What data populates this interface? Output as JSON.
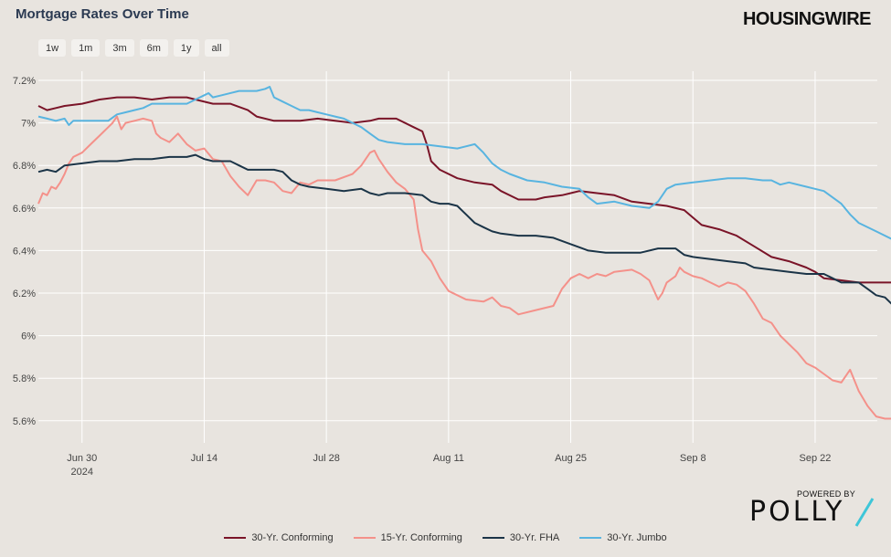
{
  "header": {
    "title": "Mortgage Rates Over Time",
    "brand": "HOUSINGWIRE"
  },
  "ranges": [
    "1w",
    "1m",
    "3m",
    "6m",
    "1y",
    "all"
  ],
  "footer": {
    "powered_by": "POWERED BY",
    "polly": "POLLY"
  },
  "chart_data": {
    "type": "line",
    "title": "Mortgage Rates Over Time",
    "x_ticks": [
      {
        "day": 5,
        "label": "Jun 30",
        "sub": "2024"
      },
      {
        "day": 19,
        "label": "Jul 14"
      },
      {
        "day": 33,
        "label": "Jul 28"
      },
      {
        "day": 47,
        "label": "Aug 11"
      },
      {
        "day": 61,
        "label": "Aug 25"
      },
      {
        "day": 75,
        "label": "Sep 8"
      },
      {
        "day": 89,
        "label": "Sep 22"
      }
    ],
    "x_range_days": [
      0,
      102
    ],
    "ylim": [
      5.5,
      7.25
    ],
    "y_ticks": [
      5.6,
      5.8,
      6,
      6.2,
      6.4,
      6.6,
      6.8,
      7,
      7.2
    ],
    "y_tick_labels": [
      "5.6%",
      "5.8%",
      "6%",
      "6.2%",
      "6.4%",
      "6.6%",
      "6.8%",
      "7%",
      "7.2%"
    ],
    "grid": true,
    "legend_position": "bottom",
    "series": [
      {
        "name": "30-Yr. Conforming",
        "color": "#7a1428",
        "points": [
          [
            0,
            7.08
          ],
          [
            1,
            7.06
          ],
          [
            2,
            7.07
          ],
          [
            3,
            7.08
          ],
          [
            5,
            7.09
          ],
          [
            7,
            7.11
          ],
          [
            9,
            7.12
          ],
          [
            11,
            7.12
          ],
          [
            13,
            7.11
          ],
          [
            15,
            7.12
          ],
          [
            17,
            7.12
          ],
          [
            18,
            7.11
          ],
          [
            20,
            7.09
          ],
          [
            22,
            7.09
          ],
          [
            24,
            7.06
          ],
          [
            25,
            7.03
          ],
          [
            27,
            7.01
          ],
          [
            30,
            7.01
          ],
          [
            32,
            7.02
          ],
          [
            34,
            7.01
          ],
          [
            36,
            7.0
          ],
          [
            38,
            7.01
          ],
          [
            39,
            7.02
          ],
          [
            41,
            7.02
          ],
          [
            43,
            6.98
          ],
          [
            44,
            6.96
          ],
          [
            44.5,
            6.9
          ],
          [
            45,
            6.82
          ],
          [
            46,
            6.78
          ],
          [
            48,
            6.74
          ],
          [
            50,
            6.72
          ],
          [
            52,
            6.71
          ],
          [
            53,
            6.68
          ],
          [
            55,
            6.64
          ],
          [
            57,
            6.64
          ],
          [
            58,
            6.65
          ],
          [
            60,
            6.66
          ],
          [
            61,
            6.67
          ],
          [
            62,
            6.68
          ],
          [
            64,
            6.67
          ],
          [
            66,
            6.66
          ],
          [
            68,
            6.63
          ],
          [
            70,
            6.62
          ],
          [
            72,
            6.61
          ],
          [
            74,
            6.59
          ],
          [
            76,
            6.52
          ],
          [
            78,
            6.5
          ],
          [
            80,
            6.47
          ],
          [
            82,
            6.42
          ],
          [
            84,
            6.37
          ],
          [
            86,
            6.35
          ],
          [
            88,
            6.32
          ],
          [
            89,
            6.3
          ],
          [
            90,
            6.27
          ],
          [
            92,
            6.26
          ],
          [
            94,
            6.25
          ],
          [
            96,
            6.25
          ],
          [
            98,
            6.25
          ],
          [
            99,
            6.25
          ],
          [
            100,
            6.25
          ],
          [
            101,
            6.26
          ],
          [
            102,
            6.26
          ]
        ]
      },
      {
        "name": "15-Yr. Conforming",
        "color": "#f4918a",
        "points": [
          [
            0,
            6.62
          ],
          [
            0.5,
            6.67
          ],
          [
            1,
            6.66
          ],
          [
            1.5,
            6.7
          ],
          [
            2,
            6.69
          ],
          [
            2.5,
            6.72
          ],
          [
            3,
            6.76
          ],
          [
            3.5,
            6.81
          ],
          [
            4,
            6.84
          ],
          [
            5,
            6.86
          ],
          [
            6,
            6.9
          ],
          [
            7,
            6.94
          ],
          [
            8,
            6.98
          ],
          [
            8.5,
            7.0
          ],
          [
            9,
            7.03
          ],
          [
            9.5,
            6.97
          ],
          [
            10,
            7.0
          ],
          [
            11,
            7.01
          ],
          [
            12,
            7.02
          ],
          [
            13,
            7.01
          ],
          [
            13.5,
            6.95
          ],
          [
            14,
            6.93
          ],
          [
            15,
            6.91
          ],
          [
            16,
            6.95
          ],
          [
            17,
            6.9
          ],
          [
            18,
            6.87
          ],
          [
            19,
            6.88
          ],
          [
            20,
            6.83
          ],
          [
            21,
            6.82
          ],
          [
            22,
            6.75
          ],
          [
            23,
            6.7
          ],
          [
            24,
            6.66
          ],
          [
            25,
            6.73
          ],
          [
            26,
            6.73
          ],
          [
            27,
            6.72
          ],
          [
            28,
            6.68
          ],
          [
            29,
            6.67
          ],
          [
            30,
            6.72
          ],
          [
            31,
            6.71
          ],
          [
            32,
            6.73
          ],
          [
            34,
            6.73
          ],
          [
            36,
            6.76
          ],
          [
            37,
            6.8
          ],
          [
            38,
            6.86
          ],
          [
            38.5,
            6.87
          ],
          [
            39,
            6.83
          ],
          [
            40,
            6.77
          ],
          [
            41,
            6.72
          ],
          [
            42,
            6.69
          ],
          [
            43,
            6.64
          ],
          [
            43.5,
            6.5
          ],
          [
            44,
            6.4
          ],
          [
            45,
            6.35
          ],
          [
            46,
            6.27
          ],
          [
            47,
            6.21
          ],
          [
            49,
            6.17
          ],
          [
            51,
            6.16
          ],
          [
            52,
            6.18
          ],
          [
            53,
            6.14
          ],
          [
            54,
            6.13
          ],
          [
            55,
            6.1
          ],
          [
            57,
            6.12
          ],
          [
            59,
            6.14
          ],
          [
            60,
            6.22
          ],
          [
            61,
            6.27
          ],
          [
            62,
            6.29
          ],
          [
            63,
            6.27
          ],
          [
            64,
            6.29
          ],
          [
            65,
            6.28
          ],
          [
            66,
            6.3
          ],
          [
            68,
            6.31
          ],
          [
            69,
            6.29
          ],
          [
            70,
            6.26
          ],
          [
            71,
            6.17
          ],
          [
            71.5,
            6.2
          ],
          [
            72,
            6.25
          ],
          [
            73,
            6.28
          ],
          [
            73.5,
            6.32
          ],
          [
            74,
            6.3
          ],
          [
            75,
            6.28
          ],
          [
            76,
            6.27
          ],
          [
            77,
            6.25
          ],
          [
            78,
            6.23
          ],
          [
            79,
            6.25
          ],
          [
            80,
            6.24
          ],
          [
            81,
            6.21
          ],
          [
            82,
            6.15
          ],
          [
            83,
            6.08
          ],
          [
            84,
            6.06
          ],
          [
            85,
            6.0
          ],
          [
            86,
            5.96
          ],
          [
            87,
            5.92
          ],
          [
            88,
            5.87
          ],
          [
            89,
            5.85
          ],
          [
            90,
            5.82
          ],
          [
            91,
            5.79
          ],
          [
            92,
            5.78
          ],
          [
            93,
            5.84
          ],
          [
            94,
            5.74
          ],
          [
            95,
            5.67
          ],
          [
            96,
            5.62
          ],
          [
            97,
            5.61
          ],
          [
            99,
            5.61
          ],
          [
            100,
            5.62
          ],
          [
            101,
            5.58
          ],
          [
            102,
            5.57
          ]
        ]
      },
      {
        "name": "30-Yr. FHA",
        "color": "#1b3447",
        "points": [
          [
            0,
            6.77
          ],
          [
            1,
            6.78
          ],
          [
            2,
            6.77
          ],
          [
            3,
            6.8
          ],
          [
            5,
            6.81
          ],
          [
            7,
            6.82
          ],
          [
            9,
            6.82
          ],
          [
            11,
            6.83
          ],
          [
            13,
            6.83
          ],
          [
            15,
            6.84
          ],
          [
            17,
            6.84
          ],
          [
            18,
            6.85
          ],
          [
            19,
            6.83
          ],
          [
            20,
            6.82
          ],
          [
            22,
            6.82
          ],
          [
            23,
            6.8
          ],
          [
            24,
            6.78
          ],
          [
            25,
            6.78
          ],
          [
            27,
            6.78
          ],
          [
            28,
            6.77
          ],
          [
            29,
            6.73
          ],
          [
            30,
            6.71
          ],
          [
            31,
            6.7
          ],
          [
            33,
            6.69
          ],
          [
            35,
            6.68
          ],
          [
            37,
            6.69
          ],
          [
            38,
            6.67
          ],
          [
            39,
            6.66
          ],
          [
            40,
            6.67
          ],
          [
            42,
            6.67
          ],
          [
            44,
            6.66
          ],
          [
            45,
            6.63
          ],
          [
            46,
            6.62
          ],
          [
            47,
            6.62
          ],
          [
            48,
            6.61
          ],
          [
            49,
            6.57
          ],
          [
            50,
            6.53
          ],
          [
            51,
            6.51
          ],
          [
            52,
            6.49
          ],
          [
            53,
            6.48
          ],
          [
            55,
            6.47
          ],
          [
            57,
            6.47
          ],
          [
            59,
            6.46
          ],
          [
            61,
            6.43
          ],
          [
            63,
            6.4
          ],
          [
            65,
            6.39
          ],
          [
            67,
            6.39
          ],
          [
            69,
            6.39
          ],
          [
            71,
            6.41
          ],
          [
            73,
            6.41
          ],
          [
            74,
            6.38
          ],
          [
            75,
            6.37
          ],
          [
            77,
            6.36
          ],
          [
            79,
            6.35
          ],
          [
            81,
            6.34
          ],
          [
            82,
            6.32
          ],
          [
            84,
            6.31
          ],
          [
            86,
            6.3
          ],
          [
            88,
            6.29
          ],
          [
            90,
            6.29
          ],
          [
            91,
            6.27
          ],
          [
            92,
            6.25
          ],
          [
            94,
            6.25
          ],
          [
            95,
            6.22
          ],
          [
            96,
            6.19
          ],
          [
            97,
            6.18
          ],
          [
            98,
            6.14
          ],
          [
            100,
            6.13
          ],
          [
            101,
            6.13
          ],
          [
            102,
            6.13
          ]
        ]
      },
      {
        "name": "30-Yr. Jumbo",
        "color": "#58b4e0",
        "points": [
          [
            0,
            7.03
          ],
          [
            1,
            7.02
          ],
          [
            2,
            7.01
          ],
          [
            3,
            7.02
          ],
          [
            3.5,
            6.99
          ],
          [
            4,
            7.01
          ],
          [
            6,
            7.01
          ],
          [
            8,
            7.01
          ],
          [
            9,
            7.04
          ],
          [
            10,
            7.05
          ],
          [
            11,
            7.06
          ],
          [
            12,
            7.07
          ],
          [
            13,
            7.09
          ],
          [
            15,
            7.09
          ],
          [
            17,
            7.09
          ],
          [
            18,
            7.11
          ],
          [
            19,
            7.13
          ],
          [
            19.5,
            7.14
          ],
          [
            20,
            7.12
          ],
          [
            21,
            7.13
          ],
          [
            23,
            7.15
          ],
          [
            25,
            7.15
          ],
          [
            26,
            7.16
          ],
          [
            26.5,
            7.17
          ],
          [
            27,
            7.12
          ],
          [
            28,
            7.1
          ],
          [
            29,
            7.08
          ],
          [
            30,
            7.06
          ],
          [
            31,
            7.06
          ],
          [
            32,
            7.05
          ],
          [
            33,
            7.04
          ],
          [
            34,
            7.03
          ],
          [
            35,
            7.02
          ],
          [
            36,
            7.0
          ],
          [
            37,
            6.98
          ],
          [
            38,
            6.95
          ],
          [
            39,
            6.92
          ],
          [
            40,
            6.91
          ],
          [
            42,
            6.9
          ],
          [
            44,
            6.9
          ],
          [
            46,
            6.89
          ],
          [
            48,
            6.88
          ],
          [
            50,
            6.9
          ],
          [
            51,
            6.86
          ],
          [
            52,
            6.81
          ],
          [
            53,
            6.78
          ],
          [
            54,
            6.76
          ],
          [
            56,
            6.73
          ],
          [
            58,
            6.72
          ],
          [
            60,
            6.7
          ],
          [
            62,
            6.69
          ],
          [
            63,
            6.65
          ],
          [
            64,
            6.62
          ],
          [
            66,
            6.63
          ],
          [
            68,
            6.61
          ],
          [
            70,
            6.6
          ],
          [
            71,
            6.63
          ],
          [
            72,
            6.69
          ],
          [
            73,
            6.71
          ],
          [
            75,
            6.72
          ],
          [
            77,
            6.73
          ],
          [
            79,
            6.74
          ],
          [
            81,
            6.74
          ],
          [
            83,
            6.73
          ],
          [
            84,
            6.73
          ],
          [
            85,
            6.71
          ],
          [
            86,
            6.72
          ],
          [
            88,
            6.7
          ],
          [
            90,
            6.68
          ],
          [
            92,
            6.62
          ],
          [
            93,
            6.57
          ],
          [
            94,
            6.53
          ],
          [
            96,
            6.49
          ],
          [
            98,
            6.45
          ],
          [
            99,
            6.43
          ],
          [
            100,
            6.39
          ],
          [
            101,
            6.35
          ],
          [
            102,
            6.3
          ]
        ]
      }
    ]
  }
}
